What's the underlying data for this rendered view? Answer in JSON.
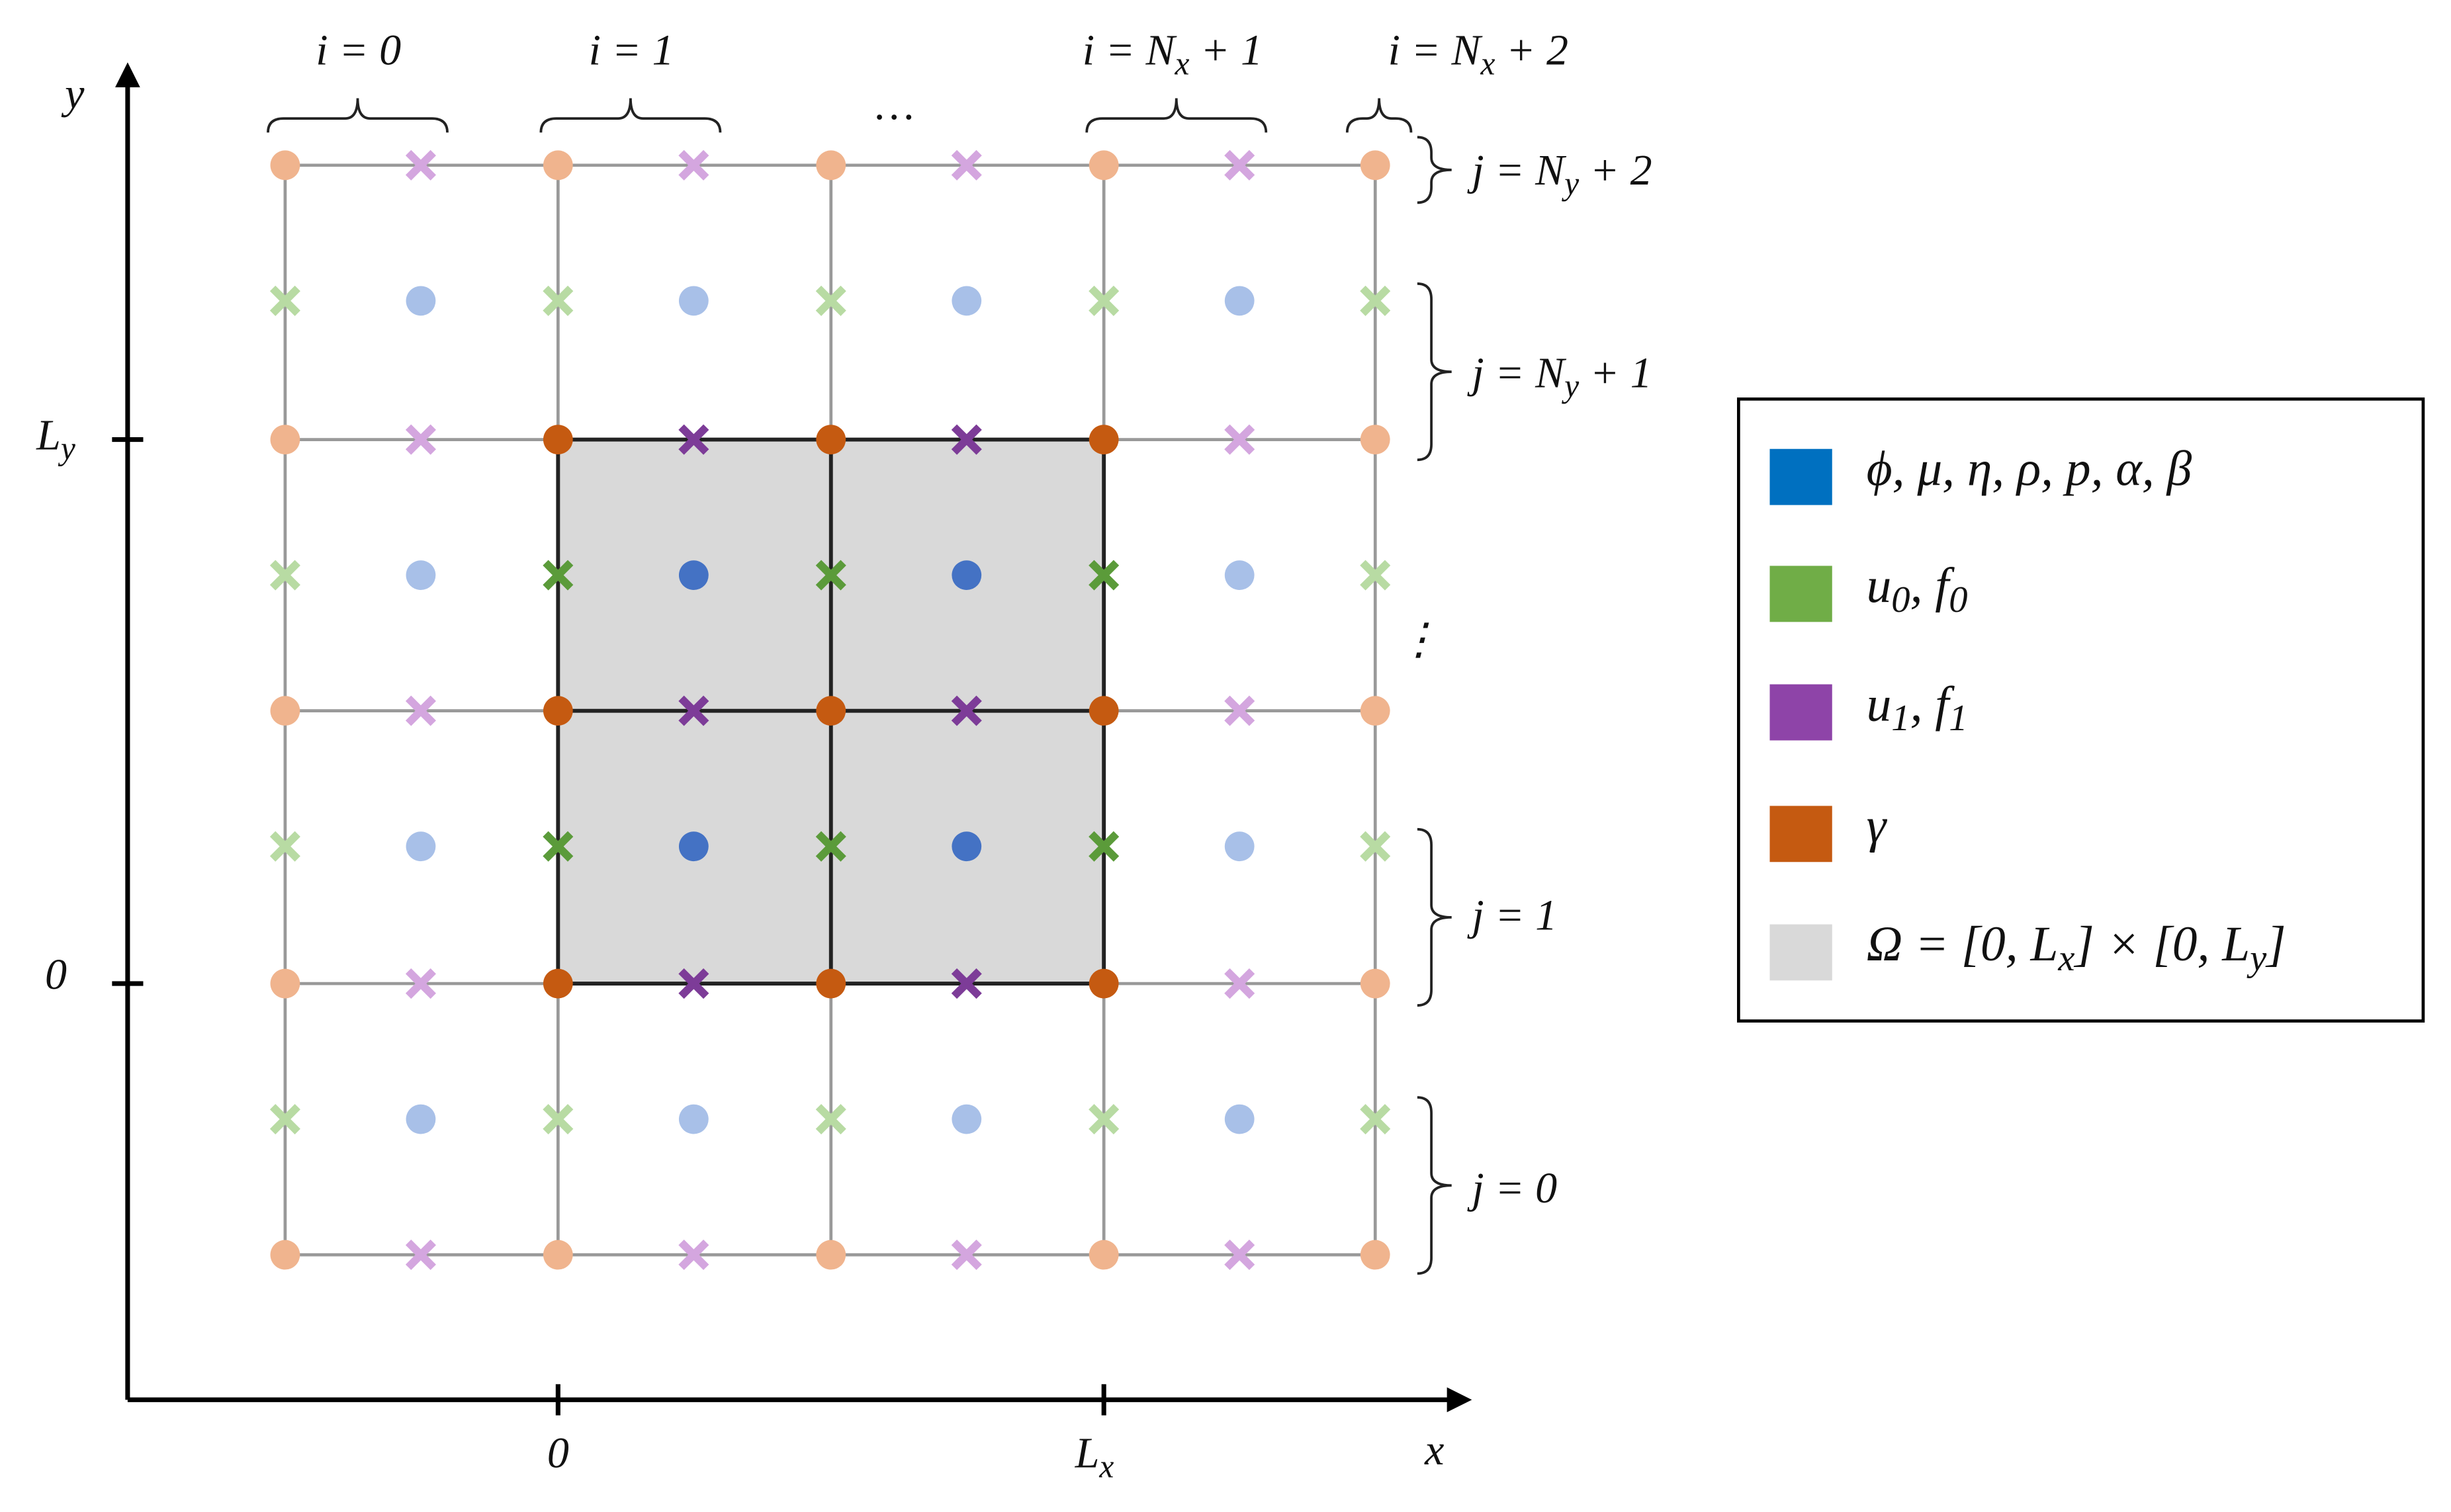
{
  "axes": {
    "x_label": [
      "x"
    ],
    "y_label": [
      "y"
    ],
    "x_ticks": [
      [
        "0"
      ],
      [
        "L",
        "x"
      ]
    ],
    "y_ticks": [
      [
        "L",
        "y"
      ],
      [
        "0"
      ]
    ]
  },
  "columns": [
    [
      "i = 0"
    ],
    [
      "i = 1"
    ],
    [
      "…"
    ],
    [
      "i = N",
      "x",
      " + 1"
    ],
    [
      "i = N",
      "x",
      " + 2"
    ]
  ],
  "rows": [
    [
      "j = N",
      "y",
      " + 2"
    ],
    [
      "j = N",
      "y",
      " + 1"
    ],
    [
      "⋮"
    ],
    [
      "j = 1"
    ],
    [
      "j = 0"
    ]
  ],
  "legend": [
    {
      "color": "#0070c0",
      "label": [
        "ϕ, μ, η, ρ, p, α, β"
      ]
    },
    {
      "color": "#70ad47",
      "label": [
        "u",
        "0",
        ", f",
        "0"
      ]
    },
    {
      "color": "#8e44a8",
      "label": [
        "u",
        "1",
        ", f",
        "1"
      ]
    },
    {
      "color": "#c55a11",
      "label": [
        "γ"
      ]
    },
    {
      "color": "#d9d9d9",
      "label": [
        "Ω = [0, L",
        "x",
        "] × [0, L",
        "y",
        "]"
      ]
    }
  ]
}
